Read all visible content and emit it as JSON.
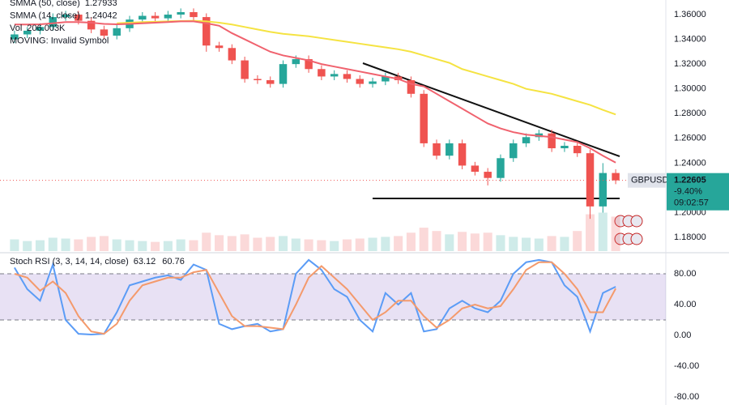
{
  "chart_data": [
    {
      "type": "candlestick",
      "categories": [
        null,
        null,
        null,
        null,
        null,
        null,
        null,
        null,
        null,
        null,
        null,
        null,
        null,
        null,
        null,
        null,
        null,
        null,
        null,
        null,
        null,
        null,
        null,
        null,
        null,
        null,
        null,
        null,
        null,
        null,
        null,
        null,
        null,
        null,
        null,
        null,
        null,
        null,
        null,
        null,
        null,
        null,
        null,
        null,
        null,
        null,
        null,
        null
      ],
      "open": [
        1.34,
        1.344,
        1.347,
        1.35,
        1.358,
        1.36,
        1.355,
        1.348,
        1.343,
        1.349,
        1.356,
        1.359,
        1.357,
        1.36,
        1.362,
        1.358,
        1.335,
        1.333,
        1.323,
        1.308,
        1.307,
        1.304,
        1.32,
        1.324,
        1.316,
        1.31,
        1.312,
        1.308,
        1.304,
        1.306,
        1.31,
        1.307,
        1.296,
        1.256,
        1.246,
        1.256,
        1.238,
        1.233,
        1.228,
        1.244,
        1.256,
        1.261,
        1.264,
        1.252,
        1.254,
        1.248,
        1.205,
        1.232
      ],
      "high": [
        1.347,
        1.35,
        1.353,
        1.361,
        1.363,
        1.363,
        1.358,
        1.351,
        1.352,
        1.359,
        1.362,
        1.362,
        1.363,
        1.365,
        1.365,
        1.361,
        1.338,
        1.336,
        1.326,
        1.311,
        1.31,
        1.323,
        1.327,
        1.327,
        1.319,
        1.315,
        1.315,
        1.311,
        1.309,
        1.313,
        1.313,
        1.31,
        1.299,
        1.259,
        1.259,
        1.259,
        1.241,
        1.236,
        1.247,
        1.259,
        1.264,
        1.267,
        1.267,
        1.257,
        1.257,
        1.251,
        1.24,
        1.235
      ],
      "low": [
        1.337,
        1.341,
        1.344,
        1.347,
        1.355,
        1.352,
        1.345,
        1.34,
        1.34,
        1.346,
        1.353,
        1.354,
        1.354,
        1.357,
        1.355,
        1.33,
        1.33,
        1.32,
        1.305,
        1.304,
        1.301,
        1.301,
        1.317,
        1.313,
        1.307,
        1.307,
        1.305,
        1.301,
        1.301,
        1.303,
        1.304,
        1.293,
        1.253,
        1.243,
        1.243,
        1.235,
        1.23,
        1.222,
        1.225,
        1.241,
        1.253,
        1.258,
        1.249,
        1.249,
        1.245,
        1.195,
        1.2,
        1.223
      ],
      "close": [
        1.344,
        1.347,
        1.35,
        1.358,
        1.36,
        1.355,
        1.348,
        1.343,
        1.349,
        1.356,
        1.359,
        1.357,
        1.36,
        1.362,
        1.358,
        1.335,
        1.333,
        1.323,
        1.308,
        1.307,
        1.304,
        1.32,
        1.324,
        1.316,
        1.31,
        1.312,
        1.308,
        1.304,
        1.306,
        1.31,
        1.307,
        1.296,
        1.256,
        1.246,
        1.256,
        1.238,
        1.233,
        1.228,
        1.244,
        1.256,
        1.261,
        1.264,
        1.252,
        1.254,
        1.248,
        1.205,
        1.232,
        1.22605
      ],
      "up_color": "#26a69a",
      "down_color": "#ef5350",
      "series": [
        {
          "name": "SMMA (50, close)",
          "color": "#f5e342",
          "values": [
            null,
            null,
            null,
            null,
            null,
            null,
            null,
            null,
            1.353,
            1.3535,
            1.354,
            1.3542,
            1.3545,
            1.3548,
            1.355,
            1.3545,
            1.3535,
            1.352,
            1.35,
            1.348,
            1.346,
            1.3445,
            1.3435,
            1.3425,
            1.341,
            1.3395,
            1.338,
            1.3365,
            1.335,
            1.3335,
            1.332,
            1.33,
            1.327,
            1.324,
            1.321,
            1.316,
            1.313,
            1.31,
            1.307,
            1.304,
            1.3,
            1.298,
            1.296,
            1.293,
            1.29,
            1.287,
            1.283,
            1.27933
          ]
        },
        {
          "name": "SMMA (14, close)",
          "color": "#f0626e",
          "values": [
            1.352,
            1.352,
            1.3522,
            1.353,
            1.354,
            1.354,
            1.3535,
            1.3525,
            1.3522,
            1.3525,
            1.353,
            1.3535,
            1.354,
            1.3545,
            1.3545,
            1.353,
            1.351,
            1.345,
            1.34,
            1.335,
            1.33,
            1.327,
            1.325,
            1.323,
            1.32,
            1.318,
            1.316,
            1.314,
            1.312,
            1.31,
            1.308,
            1.304,
            1.302,
            1.296,
            1.29,
            1.284,
            1.278,
            1.272,
            1.268,
            1.265,
            1.263,
            1.262,
            1.261,
            1.259,
            1.257,
            1.252,
            1.246,
            1.24042
          ]
        },
        {
          "name": "Vol",
          "color": "#26a69a",
          "axis": "y2",
          "last_label": "206.003K",
          "values": [
            70000,
            60000,
            65000,
            80000,
            75000,
            70000,
            85000,
            90000,
            70000,
            65000,
            60000,
            55000,
            60000,
            70000,
            65000,
            110000,
            95000,
            90000,
            100000,
            80000,
            85000,
            90000,
            75000,
            70000,
            65000,
            60000,
            70000,
            75000,
            80000,
            85000,
            90000,
            110000,
            140000,
            120000,
            100000,
            115000,
            105000,
            110000,
            95000,
            85000,
            80000,
            75000,
            90000,
            85000,
            120000,
            220000,
            230000,
            206003
          ]
        }
      ],
      "annotation": "MOVING: Invalid Symbol",
      "symbol": "GBPUSD",
      "change": {
        "value": -9.4,
        "label": "-9.40%"
      },
      "countdown": "09:02:57",
      "ylim": [
        1.1689,
        1.3718
      ],
      "yticks": [
        {
          "value": 1.36,
          "label": "1.36000"
        },
        {
          "value": 1.34,
          "label": "1.34000"
        },
        {
          "value": 1.32,
          "label": "1.32000"
        },
        {
          "value": 1.3,
          "label": "1.30000"
        },
        {
          "value": 1.28,
          "label": "1.28000"
        },
        {
          "value": 1.26,
          "label": "1.26000"
        },
        {
          "value": 1.24,
          "label": "1.24000"
        },
        {
          "value": 1.2,
          "label": "1.20000"
        },
        {
          "value": 1.18,
          "label": "1.18000"
        }
      ],
      "y2lim": [
        0,
        1500000
      ]
    },
    {
      "type": "line",
      "title": "Stoch RSI (3, 3, 14, 14, close)",
      "categories": [
        null,
        null,
        null,
        null,
        null,
        null,
        null,
        null,
        null,
        null,
        null,
        null,
        null,
        null,
        null,
        null,
        null,
        null,
        null,
        null,
        null,
        null,
        null,
        null,
        null,
        null,
        null,
        null,
        null,
        null,
        null,
        null,
        null,
        null,
        null,
        null,
        null,
        null,
        null,
        null,
        null,
        null,
        null,
        null,
        null,
        null,
        null,
        null
      ],
      "series": [
        {
          "color": "#5b9cf6",
          "values": [
            88,
            60,
            45,
            92,
            20,
            2,
            1,
            2,
            30,
            65,
            70,
            75,
            78,
            72,
            92,
            85,
            15,
            8,
            12,
            15,
            5,
            8,
            80,
            98,
            85,
            60,
            50,
            20,
            5,
            55,
            40,
            55,
            5,
            8,
            35,
            45,
            35,
            30,
            45,
            80,
            95,
            98,
            95,
            65,
            50,
            5,
            55,
            63.12
          ]
        },
        {
          "color": "#f49a6c",
          "values": [
            80,
            75,
            58,
            70,
            55,
            25,
            5,
            2,
            15,
            45,
            65,
            70,
            75,
            75,
            82,
            85,
            55,
            25,
            12,
            12,
            10,
            8,
            40,
            75,
            90,
            75,
            60,
            40,
            20,
            30,
            45,
            45,
            25,
            10,
            20,
            35,
            40,
            35,
            38,
            60,
            85,
            95,
            95,
            80,
            60,
            30,
            30,
            60.76
          ]
        }
      ],
      "band": [
        20,
        80
      ],
      "band_color": "#7e57c2",
      "ylim": [
        -90.5,
        104.2
      ],
      "yticks": [
        {
          "value": 80,
          "label": "80.00"
        },
        {
          "value": 40,
          "label": "40.00"
        },
        {
          "value": 0,
          "label": "0.00"
        },
        {
          "value": -40,
          "label": "-40.00"
        },
        {
          "value": -80,
          "label": "-80.00"
        }
      ]
    }
  ]
}
